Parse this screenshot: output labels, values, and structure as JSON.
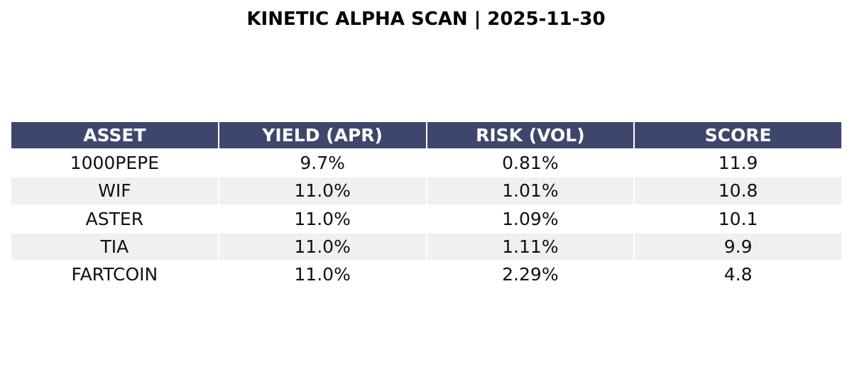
{
  "chart_data": {
    "type": "table",
    "title": "KINETIC ALPHA SCAN | 2025-11-30",
    "columns": [
      "ASSET",
      "YIELD (APR)",
      "RISK (VOL)",
      "SCORE"
    ],
    "rows": [
      [
        "1000PEPE",
        "9.7%",
        "0.81%",
        "11.9"
      ],
      [
        "WIF",
        "11.0%",
        "1.01%",
        "10.8"
      ],
      [
        "ASTER",
        "11.0%",
        "1.09%",
        "10.1"
      ],
      [
        "TIA",
        "11.0%",
        "1.11%",
        "9.9"
      ],
      [
        "FARTCOIN",
        "11.0%",
        "2.29%",
        "4.8"
      ]
    ]
  },
  "colors": {
    "header_bg": "#3f466c",
    "header_text": "#ffffff",
    "row_alt_bg": "#f0f0f0"
  }
}
